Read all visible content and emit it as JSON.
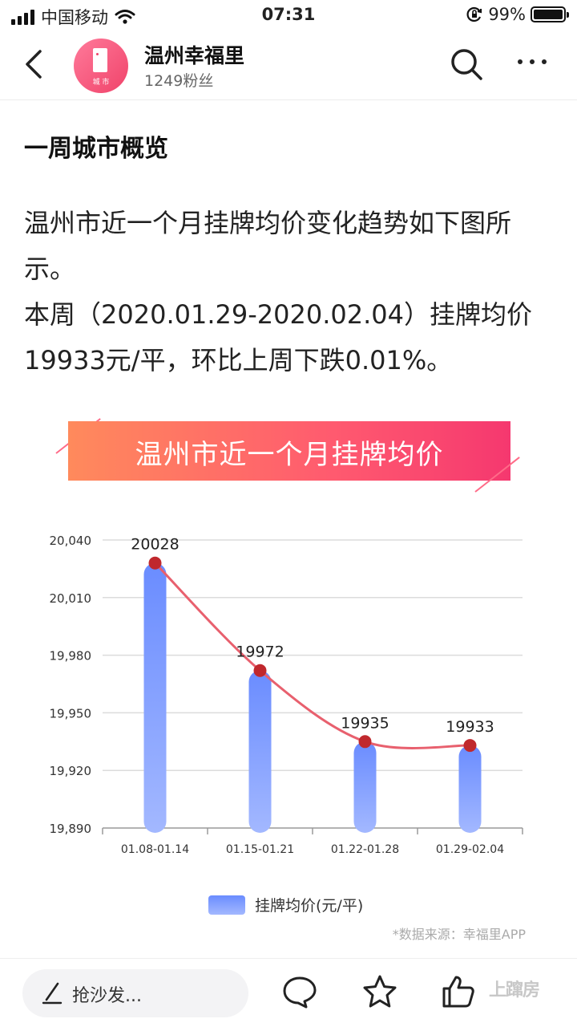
{
  "status": {
    "carrier": "中国移动",
    "time": "07:31",
    "battery": "99%",
    "battery_level": 0.99
  },
  "header": {
    "account_name": "温州幸福里",
    "followers": "1249粉丝",
    "avatar_tag": "城 市"
  },
  "article": {
    "section_title": "一周城市概览",
    "paragraphs": [
      "温州市近一个月挂牌均价变化趋势如下图所示。",
      "本周（2020.01.29-2020.02.04）挂牌均价19933元/平，环比上周下跌0.01%。"
    ],
    "banner_title": "温州市近一个月挂牌均价"
  },
  "chart_data": {
    "type": "bar",
    "title": "温州市近一个月挂牌均价",
    "categories": [
      "01.08-01.14",
      "01.15-01.21",
      "01.22-01.28",
      "01.29-02.04"
    ],
    "series": [
      {
        "name": "挂牌均价(元/平)",
        "values": [
          20028,
          19972,
          19935,
          19933
        ],
        "color_top": "#6a8cff",
        "color_bottom": "#a3b8ff"
      }
    ],
    "overlay_line": {
      "values": [
        20028,
        19972,
        19935,
        19933
      ],
      "line_color": "#e8606e",
      "marker_color": "#c0282d"
    },
    "data_labels": [
      "20028",
      "19972",
      "19935",
      "19933"
    ],
    "ylim": [
      19890,
      20040
    ],
    "yticks": [
      20040,
      20010,
      19980,
      19950,
      19920,
      19890
    ],
    "ytick_labels": [
      "20,040",
      "20,010",
      "19,980",
      "19,950",
      "19,920",
      "19,890"
    ],
    "grid": true,
    "legend_position": "bottom-center"
  },
  "chart_legend": "挂牌均价(元/平)",
  "source_note": "*数据来源：幸福里APP",
  "bottom_bar": {
    "comment_placeholder": "抢沙发...",
    "watermark": "上蹿房"
  }
}
